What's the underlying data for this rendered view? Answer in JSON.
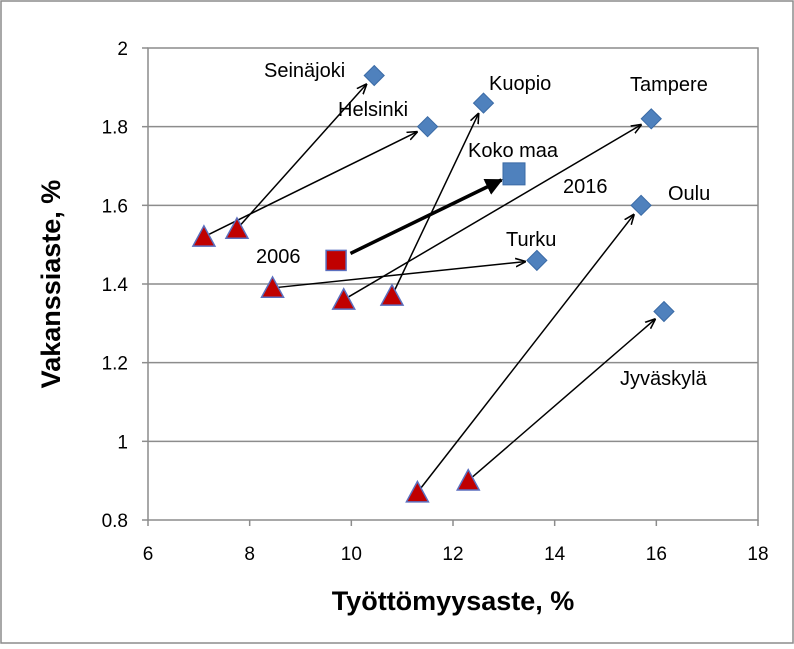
{
  "chart_data": {
    "type": "scatter",
    "xlabel": "Työttömyysaste, %",
    "ylabel": "Vakanssiaste, %",
    "xlim": [
      6,
      18
    ],
    "ylim": [
      0.8,
      2.0
    ],
    "x_ticks": [
      "6",
      "8",
      "10",
      "12",
      "14",
      "16",
      "18"
    ],
    "y_ticks": [
      "0.8",
      "1",
      "1.2",
      "1.4",
      "1.6",
      "1.8",
      "2"
    ],
    "grid": "horizontal",
    "colors": {
      "start_marker": "#c00000",
      "end_marker": "#4f81bd",
      "arrow": "#000000",
      "grid": "#8c8c8c"
    },
    "cities": [
      {
        "name": "Seinäjoki",
        "from": [
          7.75,
          1.54
        ],
        "to": [
          10.45,
          1.93
        ]
      },
      {
        "name": "Helsinki",
        "from": [
          7.1,
          1.52
        ],
        "to": [
          11.5,
          1.8
        ]
      },
      {
        "name": "Kuopio",
        "from": [
          10.8,
          1.37
        ],
        "to": [
          12.6,
          1.86
        ]
      },
      {
        "name": "Tampere",
        "from": [
          9.85,
          1.36
        ],
        "to": [
          15.9,
          1.82
        ]
      },
      {
        "name": "Turku",
        "from": [
          8.45,
          1.39
        ],
        "to": [
          13.65,
          1.46
        ]
      },
      {
        "name": "Oulu",
        "from": [
          11.3,
          0.87
        ],
        "to": [
          15.7,
          1.6
        ]
      },
      {
        "name": "Jyväskylä",
        "from": [
          12.3,
          0.9
        ],
        "to": [
          16.15,
          1.33
        ]
      }
    ],
    "national": {
      "name": "Koko maa",
      "from": [
        9.7,
        1.46
      ],
      "to": [
        13.2,
        1.68
      ]
    },
    "annotations": {
      "start_year": "2006",
      "end_year": "2016"
    }
  }
}
